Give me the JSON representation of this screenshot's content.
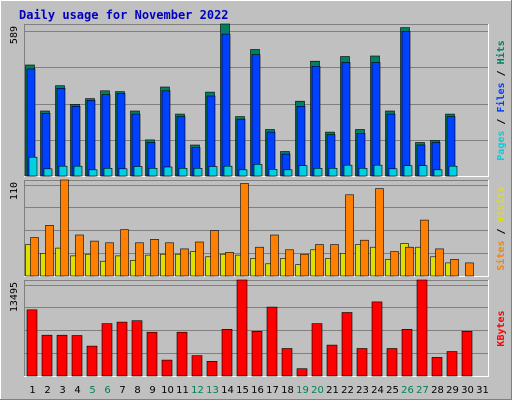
{
  "chart_data": {
    "type": "bar",
    "title": "Daily usage for November 2022",
    "days": [
      "1",
      "2",
      "3",
      "4",
      "5",
      "6",
      "7",
      "8",
      "9",
      "10",
      "11",
      "12",
      "13",
      "14",
      "15",
      "16",
      "17",
      "18",
      "19",
      "20",
      "21",
      "22",
      "23",
      "24",
      "25",
      "26",
      "27",
      "28",
      "29",
      "30",
      "31"
    ],
    "weekend_days": [
      "5",
      "6",
      "12",
      "13",
      "19",
      "20",
      "26",
      "27"
    ],
    "panels": [
      {
        "ylim": [
          0,
          589
        ],
        "ytick_label": "589",
        "side_labels": [
          {
            "text": "Pages",
            "color": "#00d0e0"
          },
          {
            "text": " / ",
            "color": "#000000"
          },
          {
            "text": "Files",
            "color": "#0040ff"
          },
          {
            "text": " / ",
            "color": "#000000"
          },
          {
            "text": "Hits",
            "color": "#008060"
          }
        ],
        "series": [
          {
            "name": "Hits",
            "color": "#008060",
            "values": [
              430,
              252,
              350,
              278,
              300,
              330,
              327,
              252,
              140,
              345,
              240,
              120,
              325,
              589,
              230,
              490,
              180,
              95,
              290,
              445,
              170,
              463,
              180,
              465,
              252,
              575,
              130,
              138,
              240,
              0,
              0
            ]
          },
          {
            "name": "Files",
            "color": "#0040ff",
            "values": [
              415,
              243,
              340,
              270,
              293,
              315,
              320,
              240,
              130,
              330,
              230,
              110,
              310,
              550,
              220,
              470,
              170,
              85,
              270,
              425,
              160,
              440,
              165,
              440,
              240,
              560,
              120,
              130,
              230,
              0,
              0
            ]
          },
          {
            "name": "Pages",
            "color": "#00d0e0",
            "values": [
              73,
              28,
              38,
              38,
              24,
              30,
              28,
              37,
              30,
              35,
              30,
              30,
              37,
              38,
              24,
              45,
              26,
              24,
              40,
              30,
              30,
              42,
              30,
              42,
              28,
              40,
              40,
              24,
              38,
              0,
              0
            ]
          }
        ]
      },
      {
        "ylim": [
          0,
          110
        ],
        "ytick_label": "110",
        "side_labels": [
          {
            "text": "Sites",
            "color": "#ff8000"
          },
          {
            "text": " / ",
            "color": "#000000"
          },
          {
            "text": "Visits",
            "color": "#e0e000"
          }
        ],
        "series": [
          {
            "name": "Visits",
            "color": "#e0e000",
            "values": [
              36,
              26,
              32,
              23,
              25,
              17,
              23,
              18,
              24,
              25,
              25,
              28,
              22,
              25,
              24,
              20,
              14,
              20,
              13,
              30,
              20,
              26,
              36,
              33,
              19,
              37,
              33,
              22,
              15,
              0,
              0
            ]
          },
          {
            "name": "Sites",
            "color": "#ff8000",
            "values": [
              44,
              58,
              110,
              47,
              40,
              38,
              53,
              38,
              42,
              38,
              31,
              39,
              52,
              27,
              106,
              33,
              47,
              30,
              25,
              36,
              36,
              93,
              41,
              100,
              28,
              33,
              64,
              31,
              19,
              15,
              0
            ]
          }
        ]
      },
      {
        "ylim": [
          0,
          13495
        ],
        "ytick_label": "13495",
        "side_labels": [
          {
            "text": "KBytes",
            "color": "#ff0000"
          }
        ],
        "series": [
          {
            "name": "KBytes",
            "color": "#ff0000",
            "values": [
              9300,
              5730,
              5730,
              5690,
              4210,
              7370,
              7570,
              7770,
              6160,
              2230,
              6160,
              2870,
              2060,
              6560,
              13495,
              6290,
              9680,
              3870,
              1030,
              7370,
              4340,
              8920,
              3870,
              10410,
              3870,
              6560,
              13495,
              2620,
              3440,
              6290,
              0
            ]
          }
        ]
      }
    ]
  }
}
